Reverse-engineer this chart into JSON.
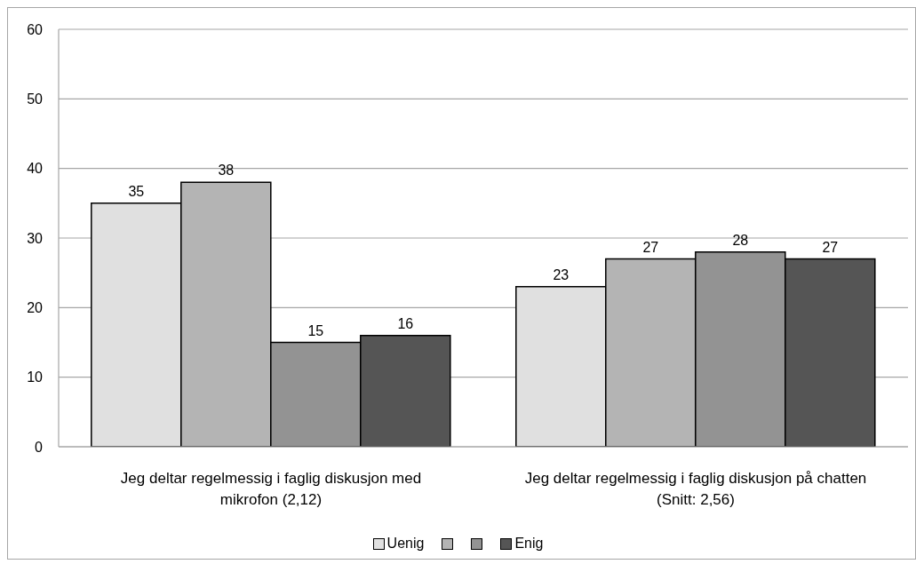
{
  "chart_data": {
    "type": "bar",
    "categories": [
      "Jeg deltar regelmessig i faglig diskusjon med mikrofon (2,12)",
      "Jeg deltar regelmessig i faglig diskusjon på chatten (Snitt: 2,56)"
    ],
    "series": [
      {
        "name": "Uenig",
        "color": "#e0e0e0",
        "values": [
          35,
          23
        ]
      },
      {
        "color": "#b4b4b4",
        "values": [
          38,
          27
        ]
      },
      {
        "color": "#939393",
        "values": [
          15,
          28
        ]
      },
      {
        "name": "Enig",
        "color": "#555555",
        "values": [
          16,
          27
        ]
      }
    ],
    "ylim": [
      0,
      60
    ],
    "yticks": [
      0,
      10,
      20,
      30,
      40,
      50,
      60
    ],
    "grid": "y",
    "data_labels": true,
    "legend": "bottom"
  }
}
